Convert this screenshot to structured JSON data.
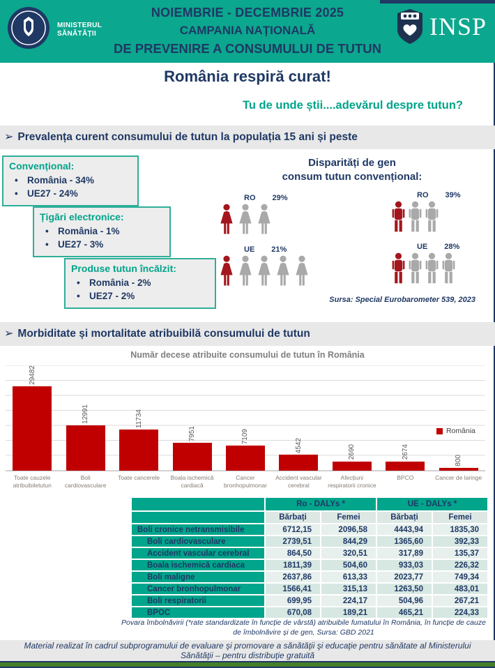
{
  "colors": {
    "teal": "#0BA78E",
    "accent_teal": "#00A38A",
    "navy": "#1F3864",
    "red_bar": "#C00000",
    "red_person": "#A4161D",
    "gray_person": "#A9A9A9",
    "green_bar": "#457F28"
  },
  "header": {
    "ministry_line1": "MINISTERUL",
    "ministry_line2": "SĂNĂTĂȚII",
    "title_line1": "NOIEMBRIE - DECEMBRIE 2025",
    "title_line2": "CAMPANIA NAȚIONALĂ",
    "title_line3": "DE PREVENIRE A CONSUMULUI DE TUTUN",
    "insp_logo_text": "INSP"
  },
  "hero": {
    "title": "România respiră curat!",
    "subtitle": "Tu de unde știi....adevărul despre tutun?"
  },
  "section1": {
    "heading": "Prevalența curent consumului de tutun la populația 15 ani și peste",
    "boxes": [
      {
        "title": "Convențional:",
        "items": [
          "România  - 34%",
          "UE27  - 24%"
        ]
      },
      {
        "title": "Țigări electronice:",
        "items": [
          "România  - 1%",
          "UE27  - 3%"
        ]
      },
      {
        "title": "Produse tutun încălzit:",
        "items": [
          "România  - 2%",
          "UE27  - 2%"
        ]
      }
    ],
    "disparity": {
      "title_line1": "Disparități de gen",
      "title_line2": "consum tutun convențional:",
      "groups": [
        {
          "label": "RO",
          "value": "29%",
          "gender": "female",
          "highlighted": 1,
          "total": 3
        },
        {
          "label": "RO",
          "value": "39%",
          "gender": "male",
          "highlighted": 1,
          "total": 3
        },
        {
          "label": "UE",
          "value": "21%",
          "gender": "female",
          "highlighted": 1,
          "total": 5
        },
        {
          "label": "UE",
          "value": "28%",
          "gender": "male",
          "highlighted": 1,
          "total": 4
        }
      ],
      "source": "Sursa: Special Eurobarometer 539, 2023"
    }
  },
  "section2": {
    "heading": "Morbiditate și mortalitate atribuibilă consumului de tutun"
  },
  "chart_data": {
    "type": "bar",
    "title": "Număr decese atribuite consumului de tutun în România",
    "categories": [
      "Toate cauzele atribuibiletutun",
      "Boli cardiovasculare",
      "Toate cancerele",
      "Boala ischemică cardiacă",
      "Cancer bronhopulmonar",
      "Accident vascular cerebral",
      "Afecțiuni respiratorii cronice",
      "BPCO",
      "Cancer de laringe"
    ],
    "values": [
      29482,
      12991,
      11734,
      7951,
      7109,
      4542,
      2690,
      2674,
      800
    ],
    "legend": [
      "România"
    ],
    "bar_color": "#C00000",
    "xlabel": "",
    "ylabel": "",
    "ylim": [
      0,
      30000
    ],
    "grid": true,
    "legend_position": "right"
  },
  "table": {
    "col_groups": [
      "Ro - DALYs *",
      "UE - DALYs *"
    ],
    "sub_headers": [
      "Bărbați",
      "Femei",
      "Bărbați",
      "Femei"
    ],
    "rows": [
      {
        "label": "Boli cronice netransmisibile",
        "indent": false,
        "values": [
          "6712,15",
          "2096,58",
          "4443,94",
          "1835,30"
        ]
      },
      {
        "label": "Boli cardiovasculare",
        "indent": true,
        "values": [
          "2739,51",
          "844,29",
          "1365,60",
          "392,33"
        ]
      },
      {
        "label": "Accident vascular cerebral",
        "indent": true,
        "values": [
          "864,50",
          "320,51",
          "317,89",
          "135,37"
        ]
      },
      {
        "label": "Boala ischemică cardiaca",
        "indent": true,
        "values": [
          "1811,39",
          "504,60",
          "933,03",
          "226,32"
        ]
      },
      {
        "label": "Boli maligne",
        "indent": true,
        "values": [
          "2637,86",
          "613,33",
          "2023,77",
          "749,34"
        ]
      },
      {
        "label": "Cancer bronhopulmonar",
        "indent": true,
        "values": [
          "1566,41",
          "315,13",
          "1263,50",
          "483,01"
        ]
      },
      {
        "label": "Boli respiratorii",
        "indent": true,
        "values": [
          "699,95",
          "224,17",
          "504,96",
          "267,21"
        ]
      },
      {
        "label": "BPOC",
        "indent": true,
        "values": [
          "670,08",
          "189,21",
          "465,21",
          "224,33"
        ]
      }
    ],
    "footnote": "Povara îmbolnăvirii (*rate standardizate în funcție de vârstă) atribuibile fumatului în România, în funcție de cauze de îmbolnăvire și de gen, Sursa: GBD 2021"
  },
  "footer": {
    "text": "Material realizat în cadrul subprogramului de evaluare şi promovare a sănătăţii şi educaţie pentru sănătate al Ministerului Sănătăţii – pentru distribuţie gratuită"
  }
}
